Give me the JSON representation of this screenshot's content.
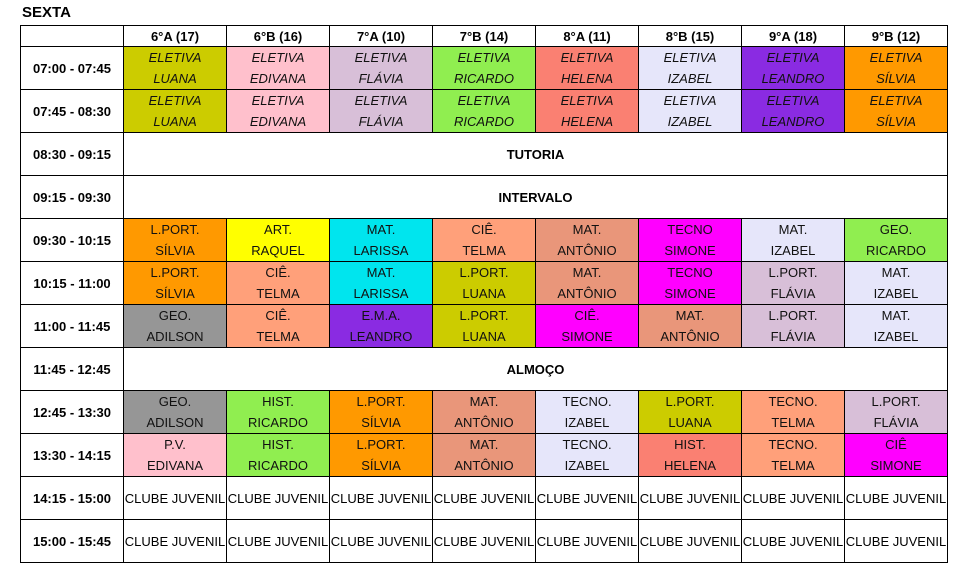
{
  "day": "SEXTA",
  "classes": [
    "6°A  (17)",
    "6°B  (16)",
    "7°A  (10)",
    "7°B  (14)",
    "8°A  (11)",
    "8°B  (15)",
    "9°A  (18)",
    "9°B  (12)"
  ],
  "rows": [
    {
      "time": "07:00 - 07:45",
      "cells": [
        {
          "l1": "ELETIVA",
          "l2": "LUANA",
          "color": "#cccc00",
          "italic": true
        },
        {
          "l1": "ELETIVA",
          "l2": "EDIVANA",
          "color": "#ffc0cc",
          "italic": true
        },
        {
          "l1": "ELETIVA",
          "l2": "FLÁVIA",
          "color": "#d8bfd8",
          "italic": true
        },
        {
          "l1": "ELETIVA",
          "l2": "RICARDO",
          "color": "#90ee50",
          "italic": true
        },
        {
          "l1": "ELETIVA",
          "l2": "HELENA",
          "color": "#fa8072",
          "italic": true
        },
        {
          "l1": "ELETIVA",
          "l2": "IZABEL",
          "color": "#e6e6fa",
          "italic": true
        },
        {
          "l1": "ELETIVA",
          "l2": "LEANDRO",
          "color": "#8a2be2",
          "italic": true
        },
        {
          "l1": "ELETIVA",
          "l2": "SÍLVIA",
          "color": "#ff9900",
          "italic": true
        }
      ]
    },
    {
      "time": "07:45 - 08:30",
      "cells": [
        {
          "l1": "ELETIVA",
          "l2": "LUANA",
          "color": "#cccc00",
          "italic": true
        },
        {
          "l1": "ELETIVA",
          "l2": "EDIVANA",
          "color": "#ffc0cc",
          "italic": true
        },
        {
          "l1": "ELETIVA",
          "l2": "FLÁVIA",
          "color": "#d8bfd8",
          "italic": true
        },
        {
          "l1": "ELETIVA",
          "l2": "RICARDO",
          "color": "#90ee50",
          "italic": true
        },
        {
          "l1": "ELETIVA",
          "l2": "HELENA",
          "color": "#fa8072",
          "italic": true
        },
        {
          "l1": "ELETIVA",
          "l2": "IZABEL",
          "color": "#e6e6fa",
          "italic": true
        },
        {
          "l1": "ELETIVA",
          "l2": "LEANDRO",
          "color": "#8a2be2",
          "italic": true
        },
        {
          "l1": "ELETIVA",
          "l2": "SÍLVIA",
          "color": "#ff9900",
          "italic": true
        }
      ]
    },
    {
      "time": "08:30 - 09:15",
      "full": "TUTORIA"
    },
    {
      "time": "09:15 - 09:30",
      "full": "INTERVALO"
    },
    {
      "time": "09:30 - 10:15",
      "cells": [
        {
          "l1": "L.PORT.",
          "l2": "SÍLVIA",
          "color": "#ff9900"
        },
        {
          "l1": "ART.",
          "l2": "RAQUEL",
          "color": "#ffff00"
        },
        {
          "l1": "MAT.",
          "l2": "LARISSA",
          "color": "#00e5ee"
        },
        {
          "l1": "CIÊ.",
          "l2": "TELMA",
          "color": "#ffa07a"
        },
        {
          "l1": "MAT.",
          "l2": "ANTÔNIO",
          "color": "#e9967a"
        },
        {
          "l1": "TECNO",
          "l2": "SIMONE",
          "color": "#ff00ff"
        },
        {
          "l1": "MAT.",
          "l2": "IZABEL",
          "color": "#e6e6fa"
        },
        {
          "l1": "GEO.",
          "l2": "RICARDO",
          "color": "#90ee50"
        }
      ]
    },
    {
      "time": "10:15 - 11:00",
      "cells": [
        {
          "l1": "L.PORT.",
          "l2": "SÍLVIA",
          "color": "#ff9900"
        },
        {
          "l1": "CIÊ.",
          "l2": "TELMA",
          "color": "#ffa07a"
        },
        {
          "l1": "MAT.",
          "l2": "LARISSA",
          "color": "#00e5ee"
        },
        {
          "l1": "L.PORT.",
          "l2": "LUANA",
          "color": "#cccc00"
        },
        {
          "l1": "MAT.",
          "l2": "ANTÔNIO",
          "color": "#e9967a"
        },
        {
          "l1": "TECNO",
          "l2": "SIMONE",
          "color": "#ff00ff"
        },
        {
          "l1": "L.PORT.",
          "l2": "FLÁVIA",
          "color": "#d8bfd8"
        },
        {
          "l1": "MAT.",
          "l2": "IZABEL",
          "color": "#e6e6fa"
        }
      ]
    },
    {
      "time": "11:00 - 11:45",
      "cells": [
        {
          "l1": "GEO.",
          "l2": "ADILSON",
          "color": "#969696"
        },
        {
          "l1": "CIÊ.",
          "l2": "TELMA",
          "color": "#ffa07a"
        },
        {
          "l1": "E.M.A.",
          "l2": "LEANDRO",
          "color": "#8a2be2"
        },
        {
          "l1": "L.PORT.",
          "l2": "LUANA",
          "color": "#cccc00"
        },
        {
          "l1": "CIÊ.",
          "l2": "SIMONE",
          "color": "#ff00ff"
        },
        {
          "l1": "MAT.",
          "l2": "ANTÔNIO",
          "color": "#e9967a"
        },
        {
          "l1": "L.PORT.",
          "l2": "FLÁVIA",
          "color": "#d8bfd8"
        },
        {
          "l1": "MAT.",
          "l2": "IZABEL",
          "color": "#e6e6fa"
        }
      ]
    },
    {
      "time": "11:45 - 12:45",
      "full": "ALMOÇO"
    },
    {
      "time": "12:45 - 13:30",
      "cells": [
        {
          "l1": "GEO.",
          "l2": "ADILSON",
          "color": "#969696"
        },
        {
          "l1": "HIST.",
          "l2": "RICARDO",
          "color": "#90ee50"
        },
        {
          "l1": "L.PORT.",
          "l2": "SÍLVIA",
          "color": "#ff9900"
        },
        {
          "l1": "MAT.",
          "l2": "ANTÔNIO",
          "color": "#e9967a"
        },
        {
          "l1": "TECNO.",
          "l2": "IZABEL",
          "color": "#e6e6fa"
        },
        {
          "l1": "L.PORT.",
          "l2": "LUANA",
          "color": "#cccc00"
        },
        {
          "l1": "TECNO.",
          "l2": "TELMA",
          "color": "#ffa07a"
        },
        {
          "l1": "L.PORT.",
          "l2": "FLÁVIA",
          "color": "#d8bfd8"
        }
      ]
    },
    {
      "time": "13:30 - 14:15",
      "cells": [
        {
          "l1": "P.V.",
          "l2": "EDIVANA",
          "color": "#ffc0cc"
        },
        {
          "l1": "HIST.",
          "l2": "RICARDO",
          "color": "#90ee50"
        },
        {
          "l1": "L.PORT.",
          "l2": "SÍLVIA",
          "color": "#ff9900"
        },
        {
          "l1": "MAT.",
          "l2": "ANTÔNIO",
          "color": "#e9967a"
        },
        {
          "l1": "TECNO.",
          "l2": "IZABEL",
          "color": "#e6e6fa"
        },
        {
          "l1": "HIST.",
          "l2": "HELENA",
          "color": "#fa8072"
        },
        {
          "l1": "TECNO.",
          "l2": "TELMA",
          "color": "#ffa07a"
        },
        {
          "l1": "CIÊ",
          "l2": "SIMONE",
          "color": "#ff00ff"
        }
      ]
    },
    {
      "time": "14:15 - 15:00",
      "club": "CLUBE JUVENIL"
    },
    {
      "time": "15:00 - 15:45",
      "club": "CLUBE JUVENIL"
    }
  ]
}
